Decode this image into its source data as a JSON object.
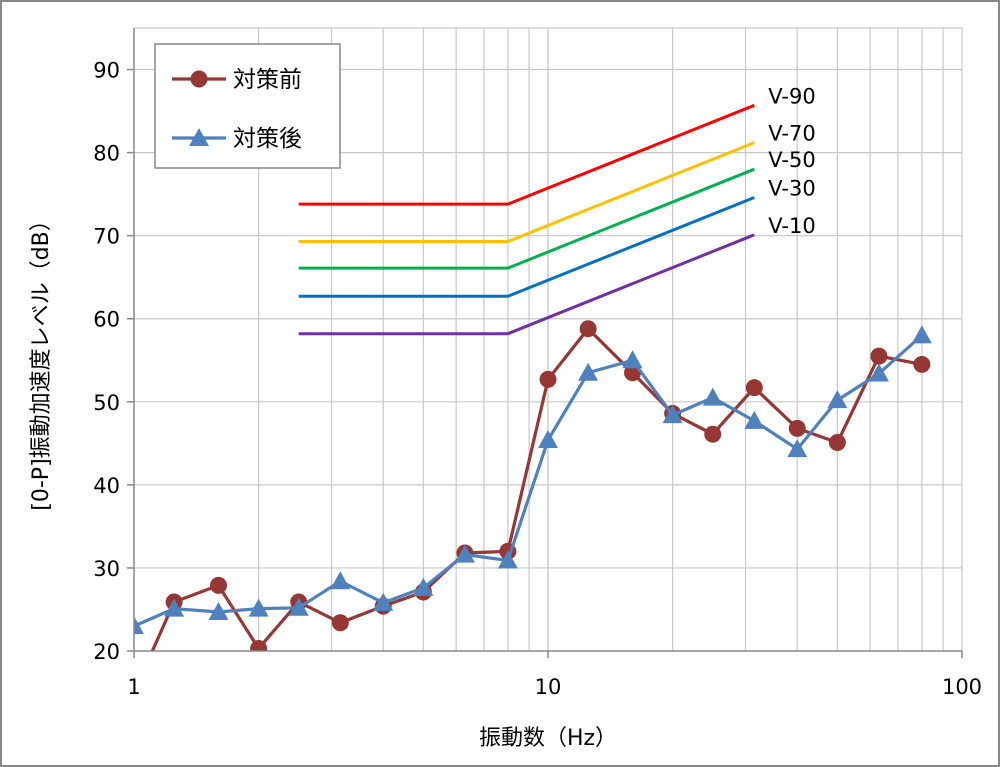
{
  "chart_data": {
    "type": "line",
    "x_scale": "log",
    "xlim": [
      1,
      100
    ],
    "ylim": [
      20,
      95
    ],
    "grid": true,
    "xlabel": "振動数（Hz）",
    "ylabel": "[0-P]振動加速度レベル（dB）",
    "x_ticks": [
      "1",
      "10",
      "100"
    ],
    "y_ticks": [
      "20",
      "30",
      "40",
      "50",
      "60",
      "70",
      "80",
      "90"
    ],
    "x_tick_values": [
      1,
      10,
      100
    ],
    "y_tick_values": [
      20,
      30,
      40,
      50,
      60,
      70,
      80,
      90
    ],
    "legend_position": "top-left",
    "x": [
      1,
      1.25,
      1.6,
      2,
      2.5,
      3.15,
      4,
      5,
      6.3,
      8,
      10,
      12.5,
      16,
      20,
      25,
      31.5,
      40,
      50,
      63,
      80
    ],
    "series": [
      {
        "name": "対策前",
        "color": "#953735",
        "marker": "circle",
        "values": [
          15,
          25.9,
          27.9,
          20.3,
          25.9,
          23.4,
          25.4,
          27.1,
          31.8,
          32.0,
          52.7,
          58.8,
          53.5,
          48.6,
          46.1,
          51.7,
          46.8,
          45.1,
          55.5,
          54.5
        ]
      },
      {
        "name": "対策後",
        "color": "#4f81bd",
        "marker": "triangle",
        "values": [
          23.0,
          25.1,
          24.7,
          25.1,
          25.2,
          28.4,
          25.8,
          27.6,
          31.6,
          30.9,
          45.4,
          53.5,
          55.0,
          48.4,
          50.5,
          47.7,
          44.3,
          50.2,
          53.4,
          58.0
        ]
      }
    ],
    "guidelines": [
      {
        "name": "V-90",
        "color": "#ff0000",
        "x": [
          2.5,
          8,
          31.5
        ],
        "values": [
          73.8,
          73.8,
          85.7
        ]
      },
      {
        "name": "V-70",
        "color": "#ffc000",
        "x": [
          2.5,
          8,
          31.5
        ],
        "values": [
          69.3,
          69.3,
          81.2
        ]
      },
      {
        "name": "V-50",
        "color": "#00b050",
        "x": [
          2.5,
          8,
          31.5
        ],
        "values": [
          66.1,
          66.1,
          78.0
        ]
      },
      {
        "name": "V-30",
        "color": "#0070c0",
        "x": [
          2.5,
          8,
          31.5
        ],
        "values": [
          62.7,
          62.7,
          74.6
        ]
      },
      {
        "name": "V-10",
        "color": "#7030a0",
        "x": [
          2.5,
          8,
          31.5
        ],
        "values": [
          58.2,
          58.2,
          70.1
        ]
      }
    ]
  }
}
